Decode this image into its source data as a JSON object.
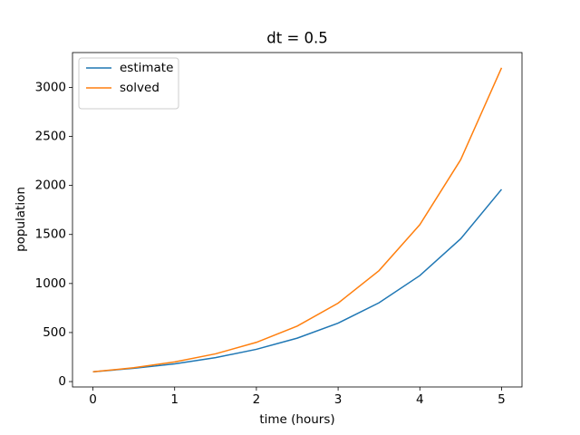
{
  "chart_data": {
    "type": "line",
    "title": "dt = 0.5",
    "xlabel": "time (hours)",
    "ylabel": "population",
    "x": [
      0,
      0.5,
      1,
      1.5,
      2,
      2.5,
      3,
      3.5,
      4,
      4.5,
      5
    ],
    "series": [
      {
        "name": "estimate",
        "color": "#1f77b4",
        "values": [
          100,
          135,
          181,
          244,
          329,
          443,
          596,
          803,
          1081,
          1456,
          1960
        ]
      },
      {
        "name": "solved",
        "color": "#ff7f0e",
        "values": [
          100,
          141,
          200,
          283,
          400,
          566,
          800,
          1131,
          1600,
          2263,
          3200
        ]
      }
    ],
    "xlim": [
      -0.25,
      5.25
    ],
    "xticks": [
      0,
      1,
      2,
      3,
      4,
      5
    ],
    "ylim": [
      -55,
      3355
    ],
    "yticks": [
      0,
      500,
      1000,
      1500,
      2000,
      2500,
      3000
    ],
    "legend": "upper left"
  }
}
